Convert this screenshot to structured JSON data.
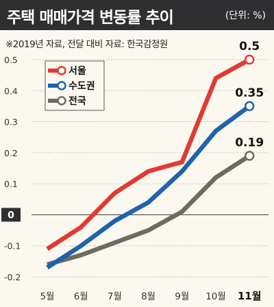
{
  "header": {
    "title": "주택 매매가격 변동률 추이",
    "unit": "(단위: %)",
    "bg_color": "#2f2f31"
  },
  "source_note": "※2019년 자료, 전달 대비   자료: 한국감정원",
  "chart_data": {
    "type": "line",
    "title": "주택 매매가격 변동률 추이",
    "x": [
      "5월",
      "6월",
      "7월",
      "8월",
      "9월",
      "10월",
      "11월"
    ],
    "ylim": [
      -0.2,
      0.5
    ],
    "yticks": [
      "0.5",
      "0.4",
      "0.3",
      "0.2",
      "0.1",
      "0",
      "-0.1",
      "-0.2"
    ],
    "ytick_values": [
      0.5,
      0.4,
      0.3,
      0.2,
      0.1,
      0,
      -0.1,
      -0.2
    ],
    "legend_position": "top-left",
    "series": [
      {
        "name": "서울",
        "color": "#e23a33",
        "values": [
          -0.11,
          -0.04,
          0.07,
          0.14,
          0.17,
          0.44,
          0.5
        ],
        "end_label": "0.5"
      },
      {
        "name": "수도권",
        "color": "#1f63ad",
        "values": [
          -0.17,
          -0.1,
          -0.02,
          0.04,
          0.14,
          0.27,
          0.35
        ],
        "end_label": "0.35"
      },
      {
        "name": "전국",
        "color": "#6d6b5c",
        "values": [
          -0.16,
          -0.13,
          -0.09,
          -0.05,
          0.01,
          0.12,
          0.19
        ],
        "end_label": "0.19"
      }
    ]
  }
}
